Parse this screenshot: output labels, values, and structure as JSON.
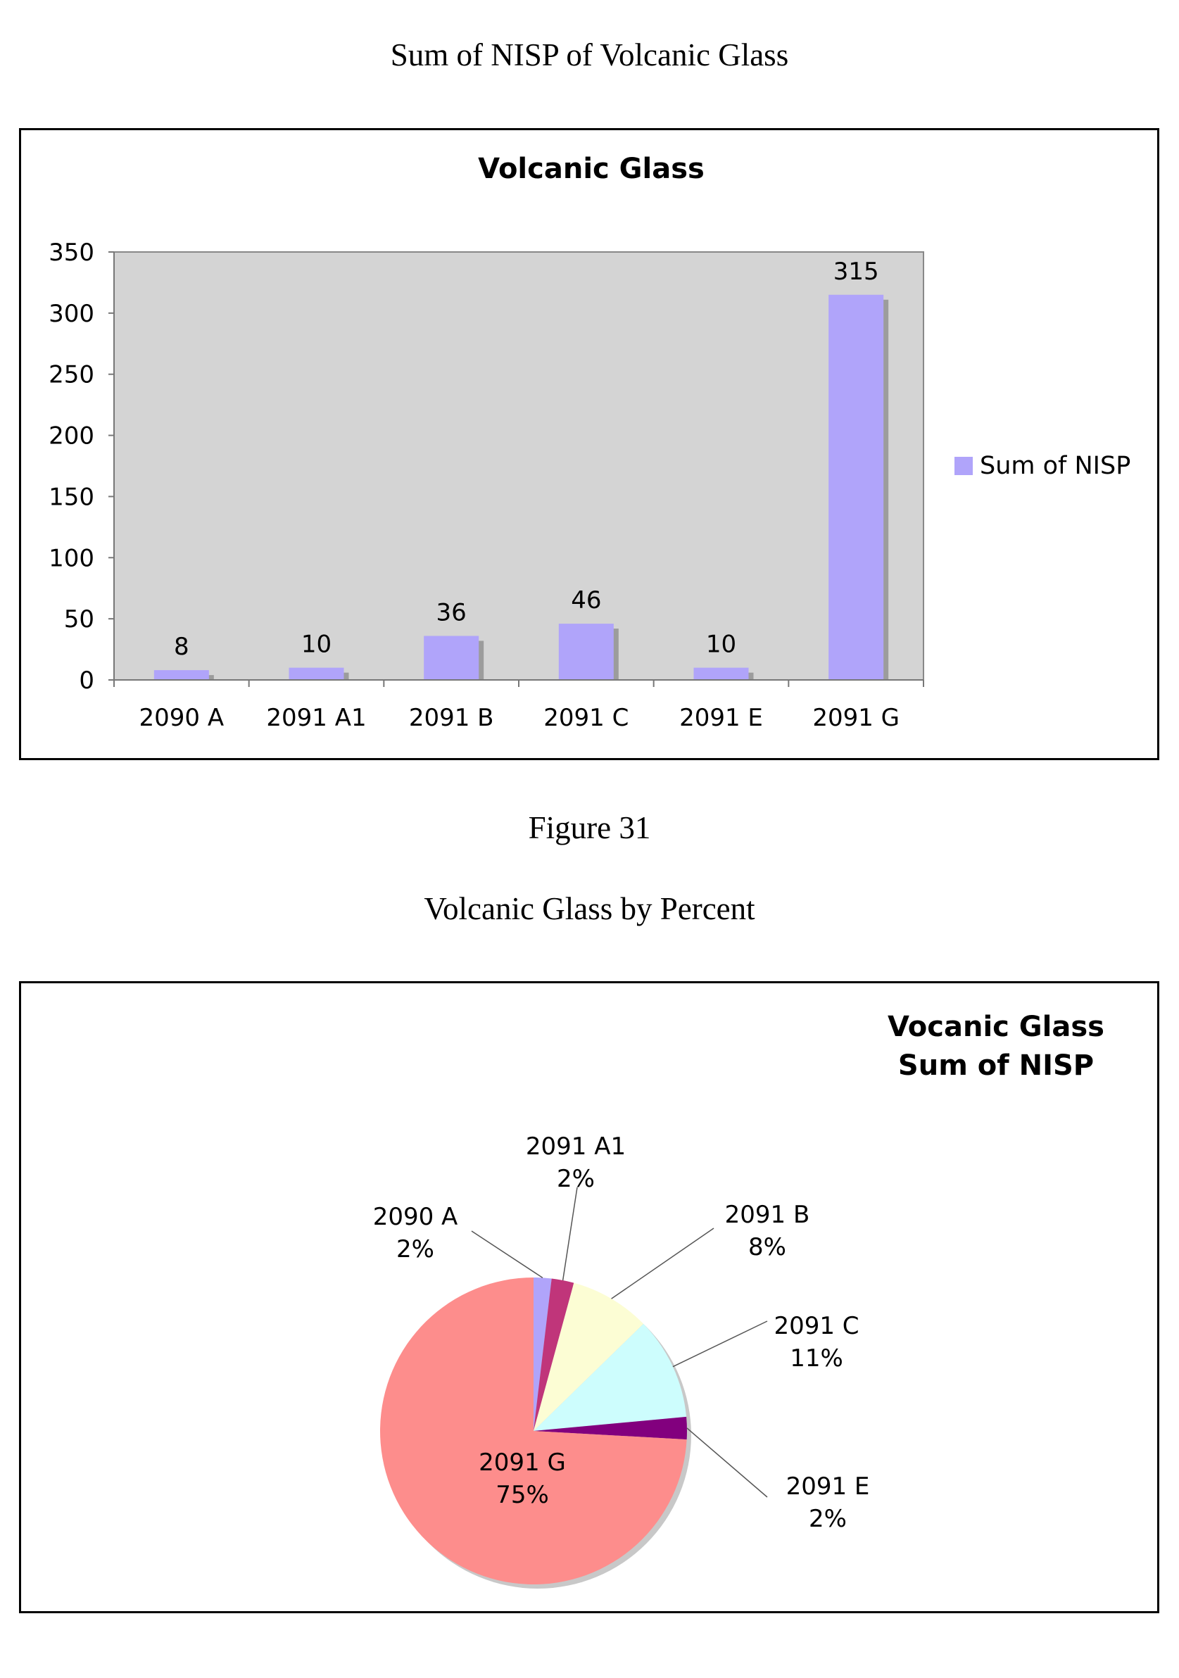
{
  "page": {
    "caption_top": "Sum of NISP of Volcanic Glass",
    "figure_label": "Figure 31",
    "caption_second": "Volcanic Glass by Percent"
  },
  "colors": {
    "bar_fill": "#b0a4fa",
    "plot_bg": "#d4d4d4",
    "bar_shadow": "#9c9c9c"
  },
  "chart_data": [
    {
      "type": "bar",
      "title": "Volcanic Glass",
      "categories": [
        "2090 A",
        "2091 A1",
        "2091 B",
        "2091 C",
        "2091 E",
        "2091 G"
      ],
      "series": [
        {
          "name": "Sum of NISP",
          "values": [
            8,
            10,
            36,
            46,
            10,
            315
          ]
        }
      ],
      "data_labels": [
        "8",
        "10",
        "36",
        "46",
        "10",
        "315"
      ],
      "ylim": [
        0,
        350
      ],
      "yticks": [
        "0",
        "50",
        "100",
        "150",
        "200",
        "250",
        "300",
        "350"
      ],
      "legend": "right",
      "xlabel": "",
      "ylabel": ""
    },
    {
      "type": "pie",
      "title": [
        "Vocanic Glass",
        "Sum of NISP"
      ],
      "slices": [
        {
          "name": "2090 A",
          "percent": "2%",
          "value": 8,
          "color": "#b0a4fa"
        },
        {
          "name": "2091 A1",
          "percent": "2%",
          "value": 10,
          "color": "#c0357a"
        },
        {
          "name": "2091 B",
          "percent": "8%",
          "value": 36,
          "color": "#fcfdd4"
        },
        {
          "name": "2091 C",
          "percent": "11%",
          "value": 46,
          "color": "#cdfdfd"
        },
        {
          "name": "2091 E",
          "percent": "2%",
          "value": 10,
          "color": "#82007e"
        },
        {
          "name": "2091 G",
          "percent": "75%",
          "value": 315,
          "color": "#fd8d8c"
        }
      ]
    }
  ]
}
